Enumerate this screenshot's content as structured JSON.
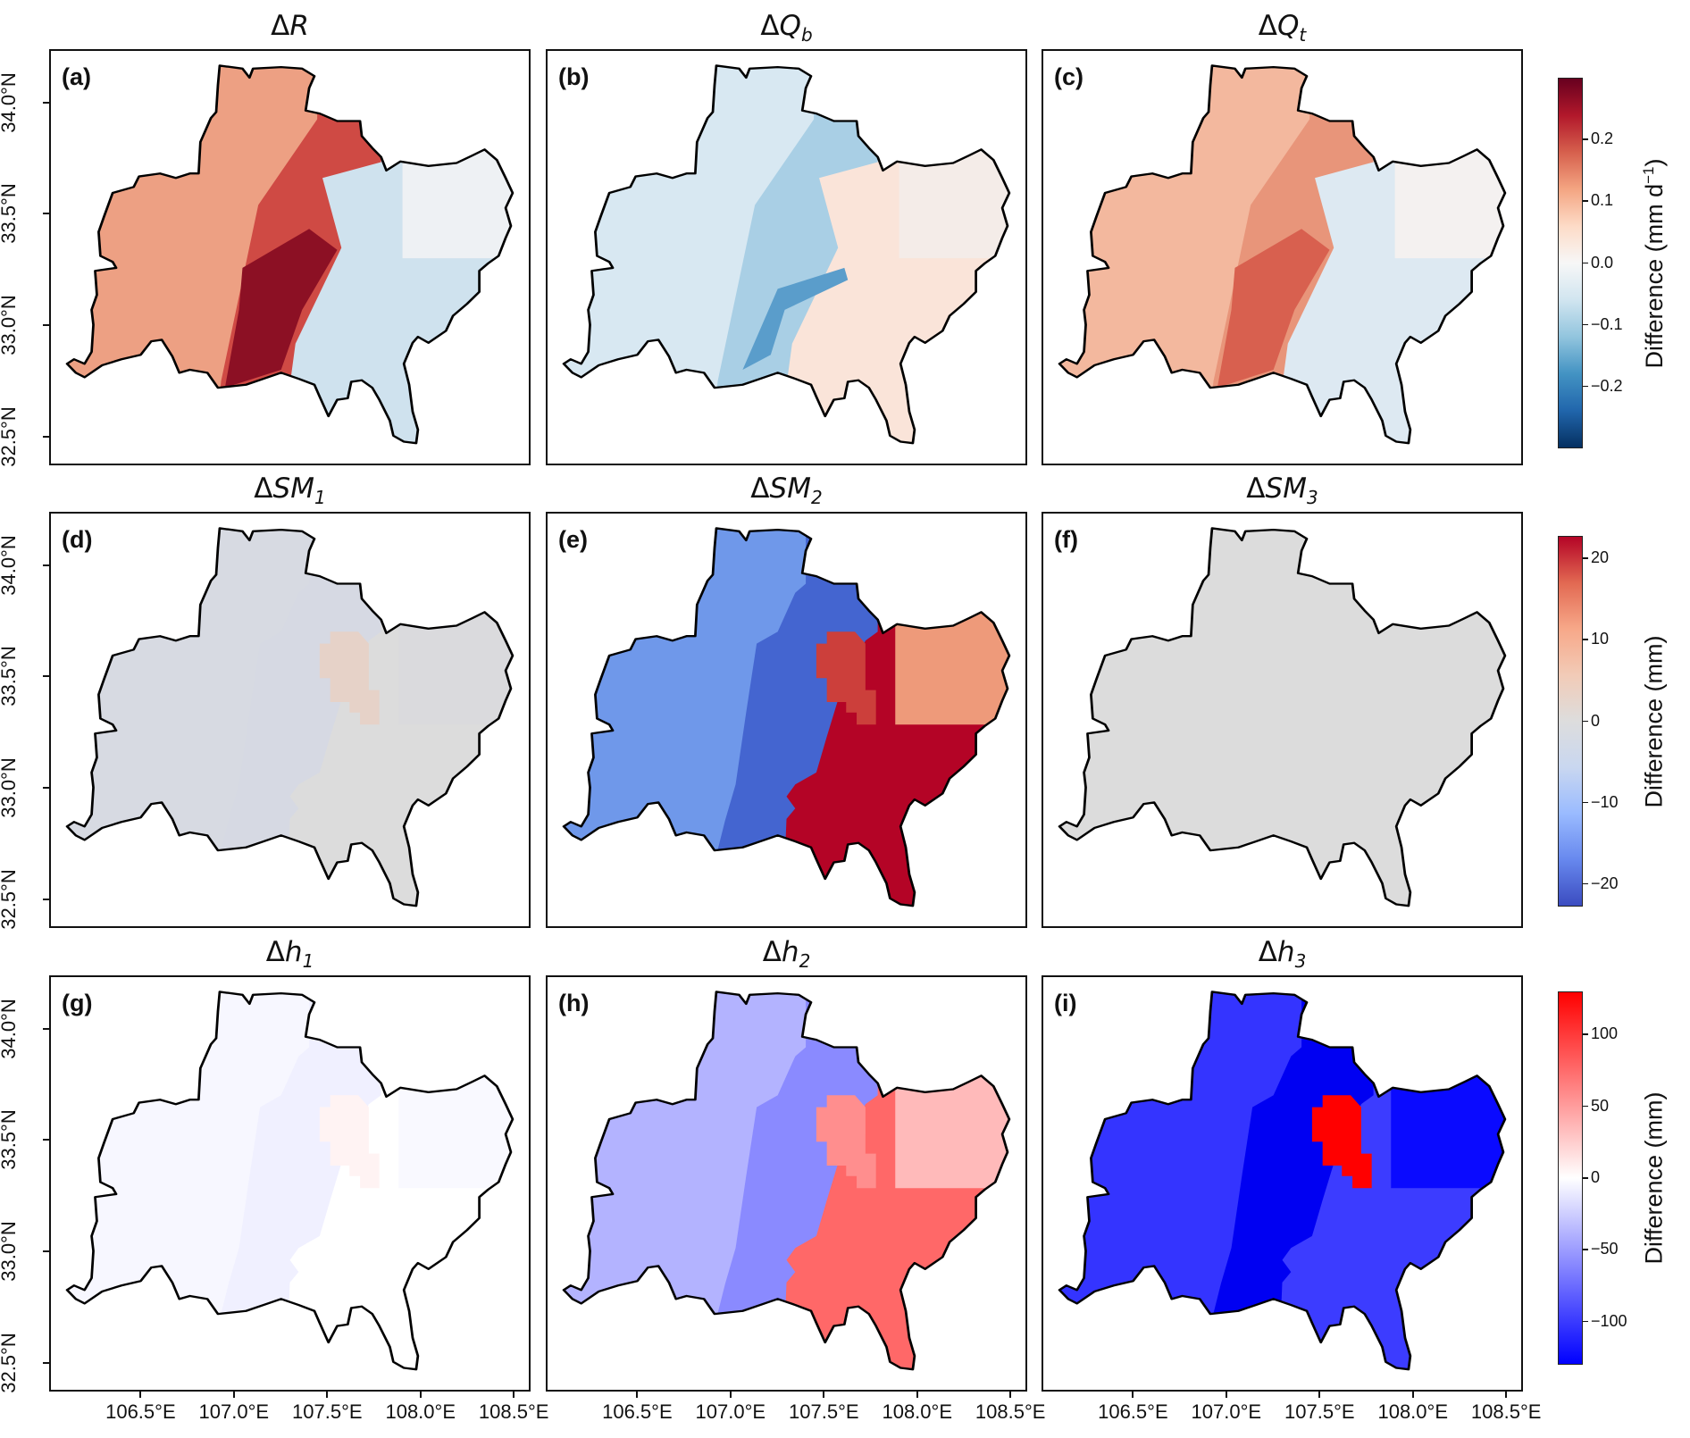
{
  "map_extent": {
    "lon": [
      106.01,
      108.59
    ],
    "lat": [
      32.37,
      34.24
    ]
  },
  "lon_ticks": [
    {
      "value": 106.5,
      "label": "106.5°E"
    },
    {
      "value": 107.0,
      "label": "107.0°E"
    },
    {
      "value": 107.5,
      "label": "107.5°E"
    },
    {
      "value": 108.0,
      "label": "108.0°E"
    },
    {
      "value": 108.5,
      "label": "108.5°E"
    }
  ],
  "lat_ticks": [
    {
      "value": 34.0,
      "label": "34.0°N"
    },
    {
      "value": 33.5,
      "label": "33.5°N"
    },
    {
      "value": 33.0,
      "label": "33.0°N"
    },
    {
      "value": 32.5,
      "label": "32.5°N"
    }
  ],
  "rows": [
    {
      "colorbar": {
        "cmap": "RdBu_r",
        "range": [
          -0.3,
          0.3
        ],
        "stops": [
          "#053061",
          "#2166ac",
          "#4393c3",
          "#92c5de",
          "#d1e5f0",
          "#f7f7f7",
          "#fddbc7",
          "#f4a582",
          "#d6604d",
          "#b2182b",
          "#67001f"
        ],
        "ticks": [
          {
            "value": 0.2,
            "label": "0.2"
          },
          {
            "value": 0.1,
            "label": "0.1"
          },
          {
            "value": 0.0,
            "label": "0.0"
          },
          {
            "value": -0.1,
            "label": "−0.1"
          },
          {
            "value": -0.2,
            "label": "−0.2"
          }
        ],
        "label": "Difference (mm d",
        "label_sup": "−1",
        "label_end": ")"
      },
      "panels": [
        {
          "label": "(a)",
          "title": {
            "prefix": "Δ",
            "var": "R",
            "sub": ""
          },
          "colors": {
            "mid": "#cf4a44",
            "west": "#eda083",
            "east": "#cfe2ee",
            "ne": "#eef1f4",
            "core": "#8c1024",
            "streak": null,
            "patch": null
          }
        },
        {
          "label": "(b)",
          "title": {
            "prefix": "Δ",
            "var": "Q",
            "sub": "b"
          },
          "colors": {
            "mid": "#a9cfe5",
            "west": "#d8e8f2",
            "east": "#fae4d9",
            "ne": "#f4ece8",
            "core": null,
            "streak": "#5a9dcb",
            "patch": null
          }
        },
        {
          "label": "(c)",
          "title": {
            "prefix": "Δ",
            "var": "Q",
            "sub": "t"
          },
          "colors": {
            "mid": "#e8957a",
            "west": "#f3b89e",
            "east": "#dde9f2",
            "ne": "#f4f1f0",
            "core": "#d8604f",
            "streak": null,
            "patch": null
          }
        }
      ]
    },
    {
      "colorbar": {
        "cmap": "coolwarm",
        "range": [
          -22.8,
          22.8
        ],
        "stops": [
          "#3b4cc0",
          "#6788ee",
          "#9abbff",
          "#c9d7f0",
          "#dddddd",
          "#f2cbb7",
          "#f7a889",
          "#e26952",
          "#b40426"
        ],
        "ticks": [
          {
            "value": 20,
            "label": "20"
          },
          {
            "value": 10,
            "label": "10"
          },
          {
            "value": 0,
            "label": "0"
          },
          {
            "value": -10,
            "label": "−10"
          },
          {
            "value": -20,
            "label": "−20"
          }
        ],
        "label": "Difference (mm)",
        "label_sup": "",
        "label_end": ""
      },
      "panels": [
        {
          "label": "(d)",
          "title": {
            "prefix": "Δ",
            "var": "SM",
            "sub": "1"
          },
          "colors": {
            "mid": "#d6d9e3",
            "west": "#d7dae2",
            "east": "#dcdcdc",
            "ne": "#dadadd",
            "core": null,
            "streak": null,
            "patch": "#e6d2c8"
          }
        },
        {
          "label": "(e)",
          "title": {
            "prefix": "Δ",
            "var": "SM",
            "sub": "2"
          },
          "colors": {
            "mid": "#4465d0",
            "west": "#6f98ea",
            "east": "#b40426",
            "ne": "#ee9a7a",
            "core": null,
            "streak": null,
            "patch": "#cc3f3b"
          }
        },
        {
          "label": "(f)",
          "title": {
            "prefix": "Δ",
            "var": "SM",
            "sub": "3"
          },
          "colors": {
            "mid": "#dcdcdc",
            "west": "#dcdcdc",
            "east": "#dcdcdc",
            "ne": "#dcdcdc",
            "core": null,
            "streak": null,
            "patch": null
          }
        }
      ]
    },
    {
      "colorbar": {
        "cmap": "bwr",
        "range": [
          -130,
          130
        ],
        "stops": [
          "#0000ff",
          "#ffffff",
          "#ff0000"
        ],
        "ticks": [
          {
            "value": 100,
            "label": "100"
          },
          {
            "value": 50,
            "label": "50"
          },
          {
            "value": 0,
            "label": "0"
          },
          {
            "value": -50,
            "label": "−50"
          },
          {
            "value": -100,
            "label": "−100"
          }
        ],
        "label": "Difference (mm)",
        "label_sup": "",
        "label_end": ""
      },
      "panels": [
        {
          "label": "(g)",
          "title": {
            "prefix": "Δ",
            "var": "h",
            "sub": "1"
          },
          "colors": {
            "mid": "#f0f0ff",
            "west": "#f7f7ff",
            "east": "#ffffff",
            "ne": "#f9f9ff",
            "core": null,
            "streak": null,
            "patch": "#fff3f3"
          }
        },
        {
          "label": "(h)",
          "title": {
            "prefix": "Δ",
            "var": "h",
            "sub": "2"
          },
          "colors": {
            "mid": "#8a8aff",
            "west": "#b3b3ff",
            "east": "#ff6868",
            "ne": "#ffbaba",
            "core": null,
            "streak": null,
            "patch": "#ff8e8e"
          }
        },
        {
          "label": "(i)",
          "title": {
            "prefix": "Δ",
            "var": "h",
            "sub": "3"
          },
          "colors": {
            "mid": "#0000f2",
            "west": "#3434ff",
            "east": "#3c3cff",
            "ne": "#0a0aff",
            "core": null,
            "streak": null,
            "patch": "#ff0000"
          }
        }
      ]
    }
  ]
}
